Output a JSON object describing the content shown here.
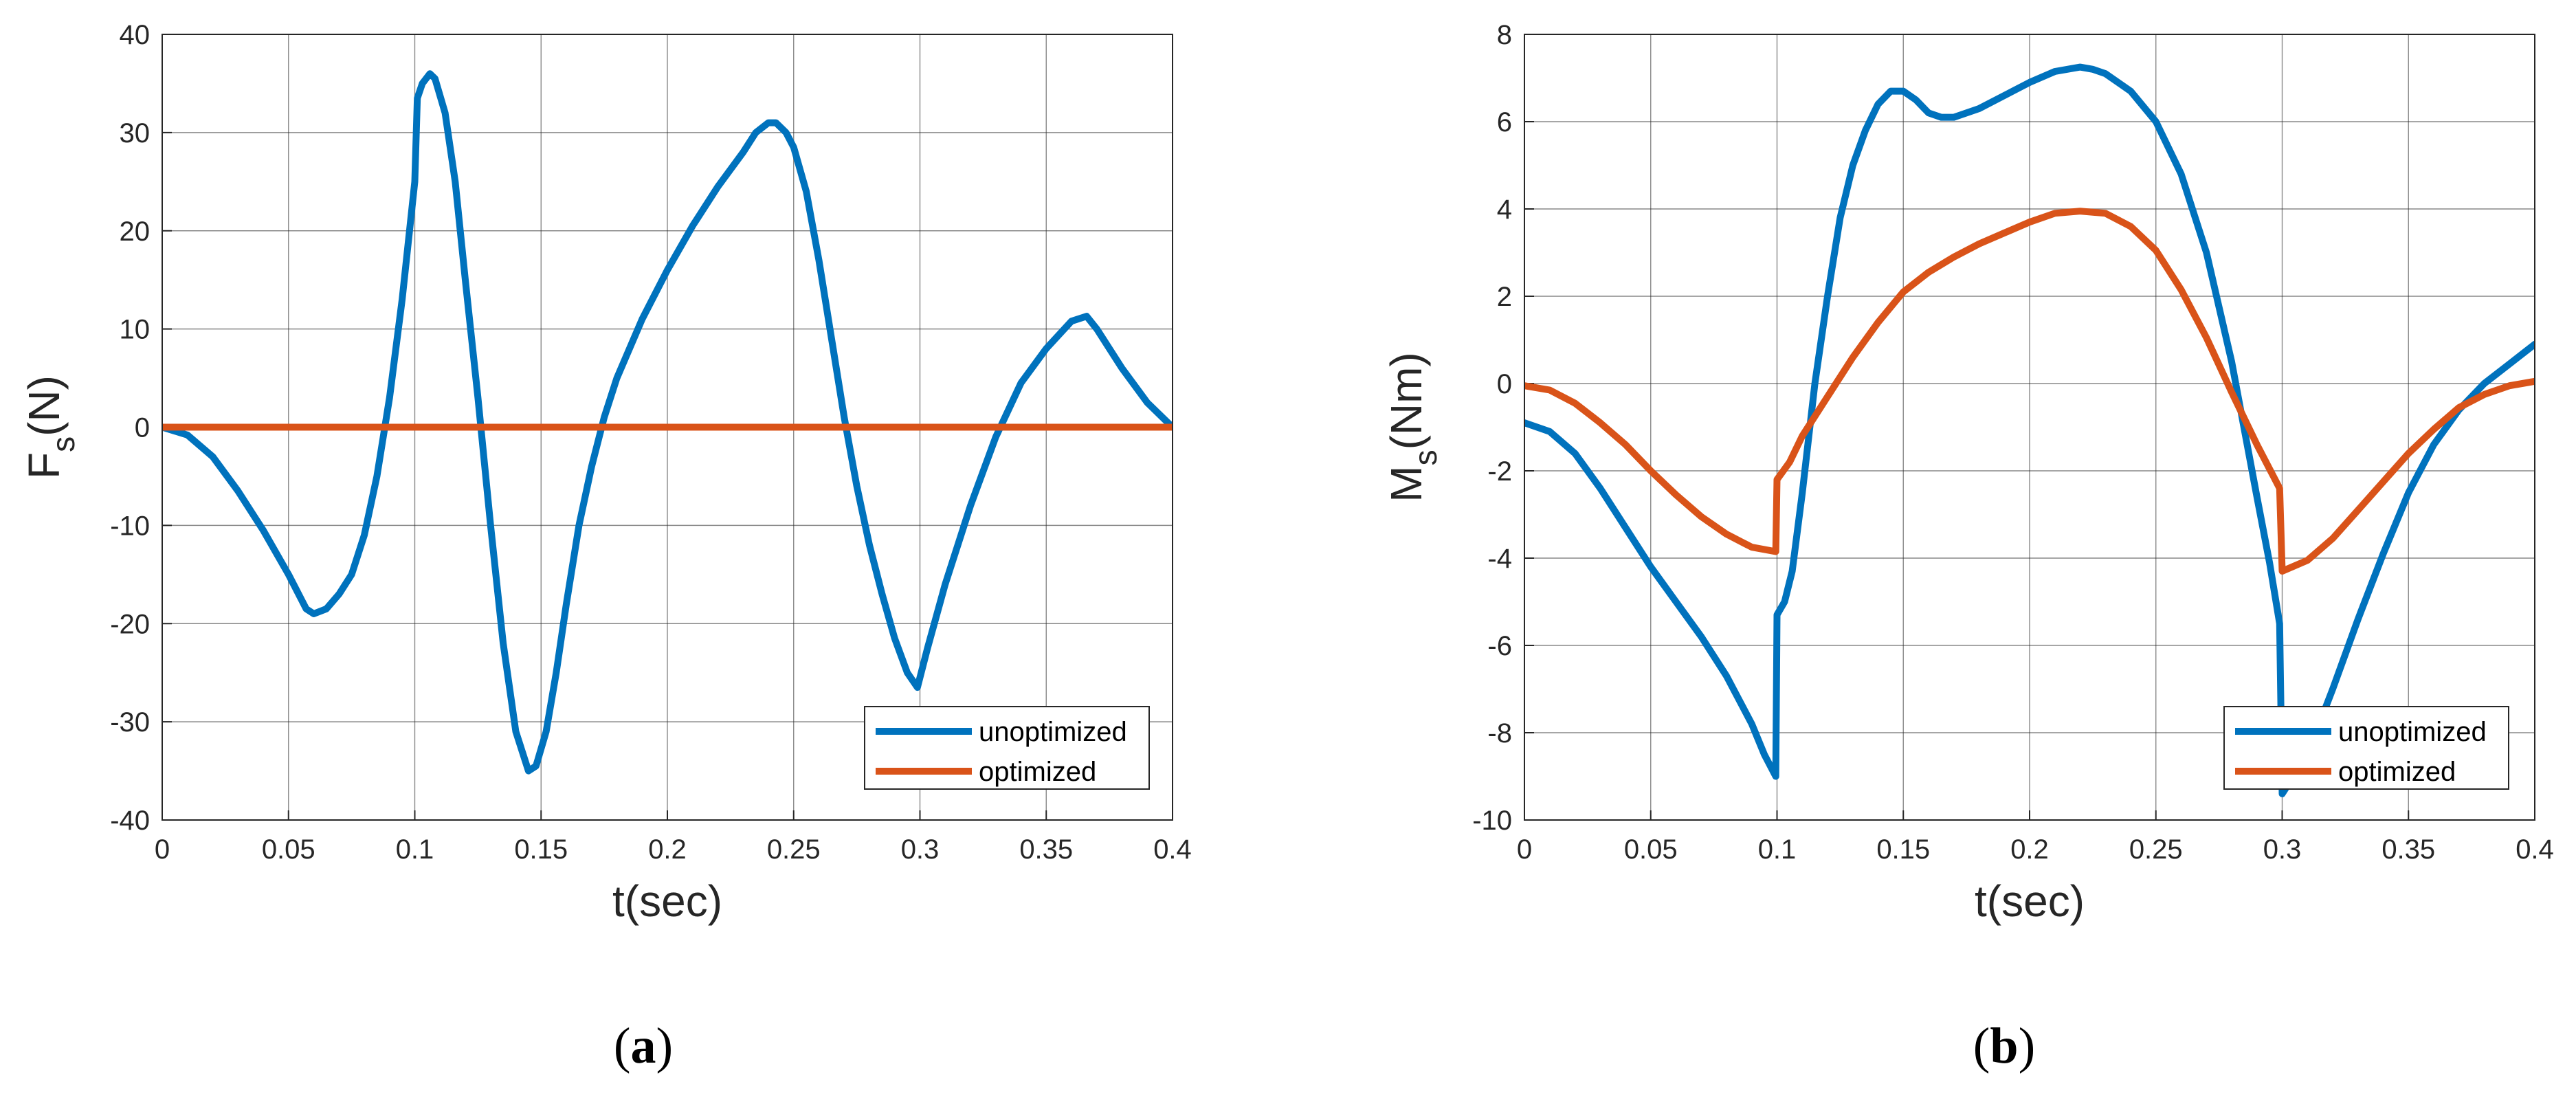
{
  "captions": {
    "a": "a",
    "b": "b"
  },
  "colors": {
    "unoptimized": "#0072BD",
    "optimized": "#D95319",
    "grid": "#262626"
  },
  "chart_data": [
    {
      "type": "line",
      "panel": "a",
      "xlabel": "t(sec)",
      "ylabel": {
        "main": "F",
        "sub": "s",
        "unit": "(N)"
      },
      "xlim": [
        0,
        0.4
      ],
      "ylim": [
        -40,
        40
      ],
      "xticks": [
        0,
        0.05,
        0.1,
        0.15,
        0.2,
        0.25,
        0.3,
        0.35,
        0.4
      ],
      "xtick_labels": [
        "0",
        "0.05",
        "0.1",
        "0.15",
        "0.2",
        "0.25",
        "0.3",
        "0.35",
        "0.4"
      ],
      "yticks": [
        -40,
        -30,
        -20,
        -10,
        0,
        10,
        20,
        30,
        40
      ],
      "ytick_labels": [
        "-40",
        "-30",
        "-20",
        "-10",
        "0",
        "10",
        "20",
        "30",
        "40"
      ],
      "grid": true,
      "legend_position": "bottom-right",
      "series": [
        {
          "name": "unoptimized",
          "points": [
            [
              0,
              0
            ],
            [
              0.01,
              -0.8
            ],
            [
              0.02,
              -3
            ],
            [
              0.03,
              -6.5
            ],
            [
              0.04,
              -10.5
            ],
            [
              0.05,
              -15
            ],
            [
              0.057,
              -18.5
            ],
            [
              0.06,
              -19
            ],
            [
              0.065,
              -18.5
            ],
            [
              0.07,
              -17
            ],
            [
              0.075,
              -15
            ],
            [
              0.08,
              -11
            ],
            [
              0.085,
              -5
            ],
            [
              0.09,
              3
            ],
            [
              0.095,
              13
            ],
            [
              0.1,
              25
            ],
            [
              0.101,
              33.5
            ],
            [
              0.103,
              35
            ],
            [
              0.106,
              36
            ],
            [
              0.108,
              35.5
            ],
            [
              0.112,
              32
            ],
            [
              0.116,
              25
            ],
            [
              0.12,
              15
            ],
            [
              0.125,
              3
            ],
            [
              0.13,
              -10
            ],
            [
              0.135,
              -22
            ],
            [
              0.14,
              -31
            ],
            [
              0.145,
              -35
            ],
            [
              0.148,
              -34.5
            ],
            [
              0.152,
              -31
            ],
            [
              0.156,
              -25
            ],
            [
              0.16,
              -18
            ],
            [
              0.165,
              -10
            ],
            [
              0.17,
              -4
            ],
            [
              0.175,
              1
            ],
            [
              0.18,
              5
            ],
            [
              0.19,
              11
            ],
            [
              0.2,
              16
            ],
            [
              0.21,
              20.5
            ],
            [
              0.22,
              24.5
            ],
            [
              0.23,
              28
            ],
            [
              0.235,
              30
            ],
            [
              0.24,
              31
            ],
            [
              0.243,
              31
            ],
            [
              0.247,
              30
            ],
            [
              0.25,
              28.5
            ],
            [
              0.255,
              24
            ],
            [
              0.26,
              17
            ],
            [
              0.265,
              9
            ],
            [
              0.27,
              1
            ],
            [
              0.275,
              -6
            ],
            [
              0.28,
              -12
            ],
            [
              0.285,
              -17
            ],
            [
              0.29,
              -21.5
            ],
            [
              0.295,
              -25
            ],
            [
              0.299,
              -26.5
            ],
            [
              0.303,
              -22.5
            ],
            [
              0.31,
              -16
            ],
            [
              0.32,
              -8
            ],
            [
              0.33,
              -1
            ],
            [
              0.34,
              4.5
            ],
            [
              0.35,
              8
            ],
            [
              0.36,
              10.8
            ],
            [
              0.366,
              11.3
            ],
            [
              0.37,
              10
            ],
            [
              0.38,
              6
            ],
            [
              0.39,
              2.5
            ],
            [
              0.4,
              0
            ]
          ]
        },
        {
          "name": "optimized",
          "points": [
            [
              0,
              0
            ],
            [
              0.4,
              0
            ]
          ]
        }
      ]
    },
    {
      "type": "line",
      "panel": "b",
      "xlabel": "t(sec)",
      "ylabel": {
        "main": "M",
        "sub": "s",
        "unit": "(Nm)"
      },
      "xlim": [
        0,
        0.4
      ],
      "ylim": [
        -10,
        8
      ],
      "xticks": [
        0,
        0.05,
        0.1,
        0.15,
        0.2,
        0.25,
        0.3,
        0.35,
        0.4
      ],
      "xtick_labels": [
        "0",
        "0.05",
        "0.1",
        "0.15",
        "0.2",
        "0.25",
        "0.3",
        "0.35",
        "0.4"
      ],
      "yticks": [
        -10,
        -8,
        -6,
        -4,
        -2,
        0,
        2,
        4,
        6,
        8
      ],
      "ytick_labels": [
        "-10",
        "-8",
        "-6",
        "-4",
        "-2",
        "0",
        "2",
        "4",
        "6",
        "8"
      ],
      "grid": true,
      "legend_position": "bottom-right",
      "series": [
        {
          "name": "unoptimized",
          "points": [
            [
              0,
              -0.9
            ],
            [
              0.01,
              -1.1
            ],
            [
              0.02,
              -1.6
            ],
            [
              0.03,
              -2.4
            ],
            [
              0.04,
              -3.3
            ],
            [
              0.05,
              -4.2
            ],
            [
              0.06,
              -5
            ],
            [
              0.07,
              -5.8
            ],
            [
              0.08,
              -6.7
            ],
            [
              0.09,
              -7.8
            ],
            [
              0.095,
              -8.5
            ],
            [
              0.0995,
              -9
            ],
            [
              0.1,
              -5.3
            ],
            [
              0.103,
              -5
            ],
            [
              0.106,
              -4.3
            ],
            [
              0.11,
              -2.5
            ],
            [
              0.115,
              0
            ],
            [
              0.12,
              2
            ],
            [
              0.125,
              3.8
            ],
            [
              0.13,
              5
            ],
            [
              0.135,
              5.8
            ],
            [
              0.14,
              6.4
            ],
            [
              0.145,
              6.7
            ],
            [
              0.15,
              6.7
            ],
            [
              0.155,
              6.5
            ],
            [
              0.16,
              6.2
            ],
            [
              0.165,
              6.1
            ],
            [
              0.17,
              6.1
            ],
            [
              0.18,
              6.3
            ],
            [
              0.19,
              6.6
            ],
            [
              0.2,
              6.9
            ],
            [
              0.21,
              7.15
            ],
            [
              0.22,
              7.25
            ],
            [
              0.225,
              7.2
            ],
            [
              0.23,
              7.1
            ],
            [
              0.24,
              6.7
            ],
            [
              0.25,
              6
            ],
            [
              0.26,
              4.8
            ],
            [
              0.27,
              3
            ],
            [
              0.28,
              0.5
            ],
            [
              0.29,
              -2.6
            ],
            [
              0.295,
              -4.1
            ],
            [
              0.299,
              -5.5
            ],
            [
              0.3,
              -9.4
            ],
            [
              0.31,
              -8.5
            ],
            [
              0.32,
              -7
            ],
            [
              0.33,
              -5.4
            ],
            [
              0.34,
              -3.9
            ],
            [
              0.35,
              -2.5
            ],
            [
              0.36,
              -1.4
            ],
            [
              0.37,
              -0.6
            ],
            [
              0.38,
              0
            ],
            [
              0.39,
              0.45
            ],
            [
              0.4,
              0.9
            ]
          ]
        },
        {
          "name": "optimized",
          "points": [
            [
              0,
              -0.05
            ],
            [
              0.01,
              -0.15
            ],
            [
              0.02,
              -0.45
            ],
            [
              0.03,
              -0.9
            ],
            [
              0.04,
              -1.4
            ],
            [
              0.05,
              -2
            ],
            [
              0.06,
              -2.55
            ],
            [
              0.07,
              -3.05
            ],
            [
              0.08,
              -3.45
            ],
            [
              0.09,
              -3.75
            ],
            [
              0.0995,
              -3.85
            ],
            [
              0.1,
              -2.2
            ],
            [
              0.105,
              -1.8
            ],
            [
              0.11,
              -1.2
            ],
            [
              0.12,
              -0.3
            ],
            [
              0.13,
              0.6
            ],
            [
              0.14,
              1.4
            ],
            [
              0.15,
              2.1
            ],
            [
              0.16,
              2.55
            ],
            [
              0.17,
              2.9
            ],
            [
              0.18,
              3.2
            ],
            [
              0.19,
              3.45
            ],
            [
              0.2,
              3.7
            ],
            [
              0.21,
              3.9
            ],
            [
              0.22,
              3.95
            ],
            [
              0.23,
              3.9
            ],
            [
              0.24,
              3.6
            ],
            [
              0.25,
              3.05
            ],
            [
              0.26,
              2.15
            ],
            [
              0.27,
              1.05
            ],
            [
              0.28,
              -0.2
            ],
            [
              0.29,
              -1.4
            ],
            [
              0.299,
              -2.4
            ],
            [
              0.3,
              -4.3
            ],
            [
              0.31,
              -4.05
            ],
            [
              0.32,
              -3.55
            ],
            [
              0.33,
              -2.9
            ],
            [
              0.34,
              -2.25
            ],
            [
              0.35,
              -1.6
            ],
            [
              0.36,
              -1.05
            ],
            [
              0.37,
              -0.55
            ],
            [
              0.38,
              -0.25
            ],
            [
              0.39,
              -0.05
            ],
            [
              0.4,
              0.05
            ]
          ]
        }
      ]
    }
  ]
}
